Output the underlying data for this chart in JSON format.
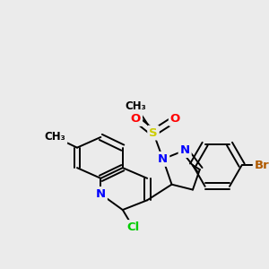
{
  "bg_color": "#ebebeb",
  "atom_colors": {
    "N": "#0000ff",
    "O": "#ff0000",
    "S": "#cccc00",
    "Cl": "#00cc00",
    "Br": "#b05a00",
    "C": "#000000"
  }
}
